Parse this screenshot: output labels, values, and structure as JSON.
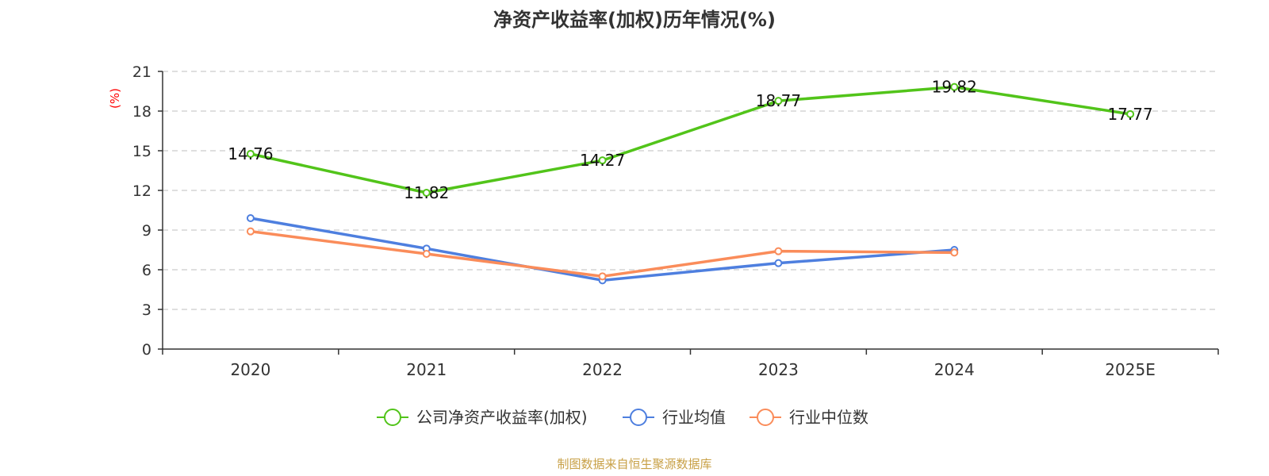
{
  "chart_data": {
    "type": "line",
    "title": "净资产收益率(加权)历年情况(%)",
    "ylabel": "(%)",
    "xlabel": "",
    "categories": [
      "2020",
      "2021",
      "2022",
      "2023",
      "2024",
      "2025E"
    ],
    "ylim": [
      0,
      21
    ],
    "yticks": [
      0,
      3,
      6,
      9,
      12,
      15,
      18,
      21
    ],
    "grid": true,
    "legend_position": "bottom",
    "series": [
      {
        "name": "公司净资产收益率(加权)",
        "color": "#52c41a",
        "values": [
          14.76,
          11.82,
          14.27,
          18.77,
          19.82,
          17.77
        ],
        "show_labels": true
      },
      {
        "name": "行业均值",
        "color": "#4e7fdf",
        "values": [
          9.9,
          7.6,
          5.2,
          6.5,
          7.5,
          null
        ],
        "show_labels": false
      },
      {
        "name": "行业中位数",
        "color": "#fa8c5a",
        "values": [
          8.9,
          7.2,
          5.5,
          7.4,
          7.3,
          null
        ],
        "show_labels": false
      }
    ]
  },
  "source_text": "制图数据来自恒生聚源数据库",
  "colors": {
    "ylabel": "#ff0000",
    "source": "#c8a046",
    "axis": "#333333",
    "grid": "#cccccc"
  }
}
